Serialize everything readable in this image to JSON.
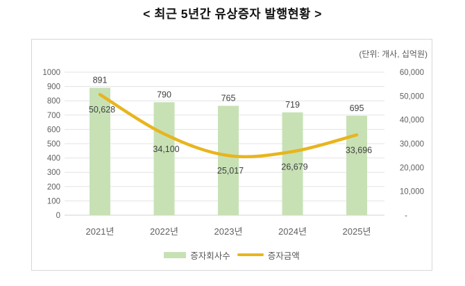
{
  "title": "< 최근 5년간 유상증자 발행현황 >",
  "unit_label": "(단위: 개사, 십억원)",
  "colors": {
    "bar": "#c7e1b5",
    "line": "#e8b51e",
    "grid": "#e3e3e3",
    "zero_line": "#d0d0d0",
    "axis_text": "#5f5f5f",
    "data_label": "#3f3f3f",
    "box_border": "#d6d6d6",
    "title_text": "#111111"
  },
  "chart_data": {
    "type": "bar+line combo",
    "title": "< 최근 5년간 유상증자 발행현황 >",
    "unit_note": "(단위: 개사, 십억원)",
    "categories": [
      "2021년",
      "2022년",
      "2023년",
      "2024년",
      "2025년"
    ],
    "series": [
      {
        "name": "증자회사수",
        "type": "bar",
        "axis": "left",
        "values": [
          891,
          790,
          765,
          719,
          695
        ],
        "labels": [
          "891",
          "790",
          "765",
          "719",
          "695"
        ],
        "color": "#c7e1b5"
      },
      {
        "name": "증자금액",
        "type": "line",
        "axis": "right",
        "values": [
          50628,
          34100,
          25017,
          26679,
          33696
        ],
        "labels": [
          "50,628",
          "34,100",
          "25,017",
          "26,679",
          "33,696"
        ],
        "color": "#e8b51e"
      }
    ],
    "left_axis": {
      "min": 0,
      "max": 1000,
      "step": 100,
      "ticks": [
        "0",
        "100",
        "200",
        "300",
        "400",
        "500",
        "600",
        "700",
        "800",
        "900",
        "1000"
      ]
    },
    "right_axis": {
      "min": 0,
      "max": 60000,
      "step": 10000,
      "ticks": [
        "-",
        "10,000",
        "20,000",
        "30,000",
        "40,000",
        "50,000",
        "60,000"
      ]
    },
    "grid": true,
    "legend_position": "bottom"
  }
}
